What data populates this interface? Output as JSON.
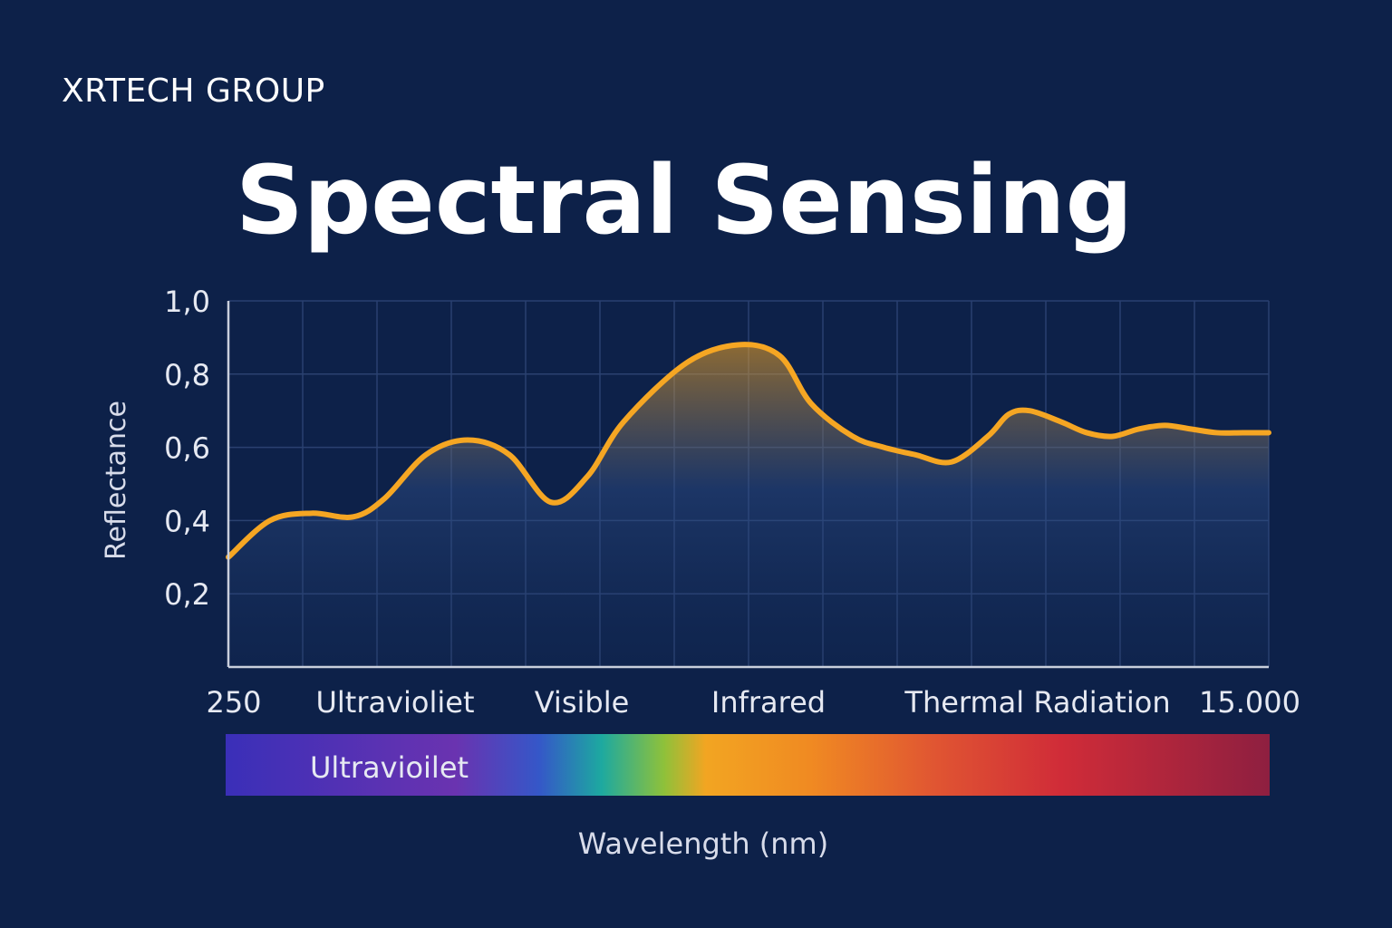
{
  "brand": "XRTECH GROUP",
  "title": "Spectral Sensing",
  "colors": {
    "background": "#0d2149",
    "line": "#f5a623",
    "highlight_label": "#f5b731",
    "grid": "#2a4170",
    "axis": "#c9cfdc"
  },
  "chart_data": {
    "type": "line",
    "title": "Spectral Sensing",
    "xlabel": "Wavelength (nm)",
    "ylabel": "Reflectance",
    "ylim": [
      0,
      1.0
    ],
    "yticks": [
      "0,2",
      "0,4",
      "0,6",
      "0,8",
      "1,0"
    ],
    "ytick_values": [
      0.2,
      0.4,
      0.6,
      0.8,
      1.0
    ],
    "x_start_label": "250",
    "x_end_label": "15.000",
    "regions": [
      {
        "label": "Ultravioliet",
        "highlight": false
      },
      {
        "label": "Visible",
        "highlight": false
      },
      {
        "label": "Infrared",
        "highlight": true
      },
      {
        "label": "Thermal Radiation",
        "highlight": false
      }
    ],
    "spectrum_bar_label": "Ultravioilet",
    "grid": true,
    "series": [
      {
        "x": [
          0,
          0.04,
          0.08,
          0.12,
          0.15,
          0.19,
          0.23,
          0.27,
          0.31,
          0.345,
          0.38,
          0.44,
          0.49,
          0.53,
          0.56,
          0.6,
          0.63,
          0.66,
          0.695,
          0.73,
          0.75,
          0.77,
          0.8,
          0.825,
          0.85,
          0.875,
          0.9,
          0.925,
          0.95,
          0.975,
          1.0
        ],
        "values": [
          0.3,
          0.4,
          0.42,
          0.41,
          0.46,
          0.58,
          0.62,
          0.58,
          0.45,
          0.52,
          0.67,
          0.83,
          0.88,
          0.85,
          0.72,
          0.63,
          0.6,
          0.58,
          0.56,
          0.63,
          0.69,
          0.7,
          0.67,
          0.64,
          0.63,
          0.65,
          0.66,
          0.65,
          0.64,
          0.64,
          0.64
        ]
      }
    ]
  }
}
